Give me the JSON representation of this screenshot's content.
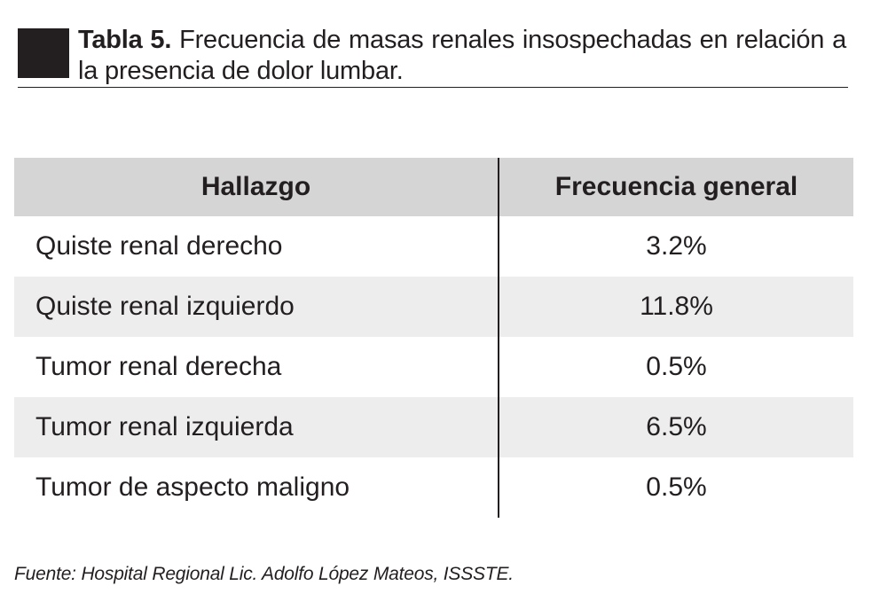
{
  "caption": {
    "label": "Tabla 5.",
    "text": "Frecuencia de masas renales insospechadas en relación a la presencia de dolor lumbar."
  },
  "table": {
    "headers": [
      "Hallazgo",
      "Frecuencia general"
    ],
    "rows": [
      {
        "finding": "Quiste renal derecho",
        "frequency": "3.2%"
      },
      {
        "finding": "Quiste renal izquierdo",
        "frequency": "11.8%"
      },
      {
        "finding": "Tumor renal derecha",
        "frequency": "0.5%"
      },
      {
        "finding": "Tumor renal izquierda",
        "frequency": "6.5%"
      },
      {
        "finding": "Tumor de aspecto maligno",
        "frequency": "0.5%"
      }
    ]
  },
  "source": "Fuente: Hospital Regional Lic. Adolfo López Mateos, ISSSTE.",
  "colors": {
    "text": "#231f20",
    "header_bg": "#d5d5d6",
    "stripe_bg": "#ededee"
  }
}
